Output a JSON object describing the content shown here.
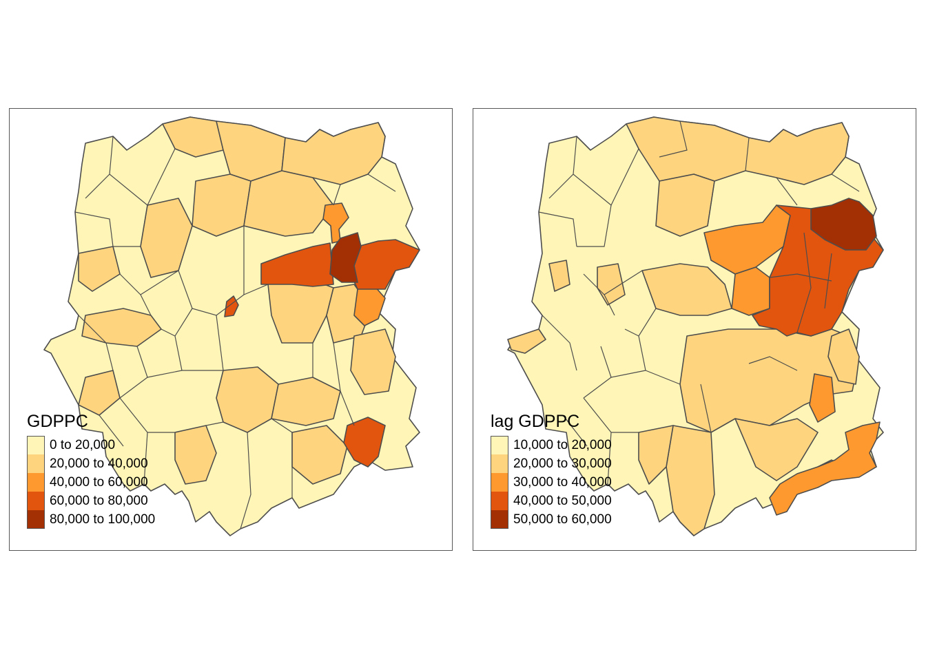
{
  "maps": [
    {
      "legend_title": "GDPPC",
      "palette": [
        "#FFF5B6",
        "#FED57E",
        "#FD992E",
        "#E1550F",
        "#A33005"
      ],
      "classes": [
        "0 to 20,000",
        "20,000 to 40,000",
        "40,000 to 60,000",
        "60,000 to 80,000",
        "80,000 to 100,000"
      ]
    },
    {
      "legend_title": "lag GDPPC",
      "palette": [
        "#FFF5B6",
        "#FED57E",
        "#FD992E",
        "#E1550F",
        "#A33005"
      ],
      "classes": [
        "10,000 to 20,000",
        "20,000 to 30,000",
        "30,000 to 40,000",
        "40,000 to 50,000",
        "50,000 to 60,000"
      ]
    }
  ]
}
